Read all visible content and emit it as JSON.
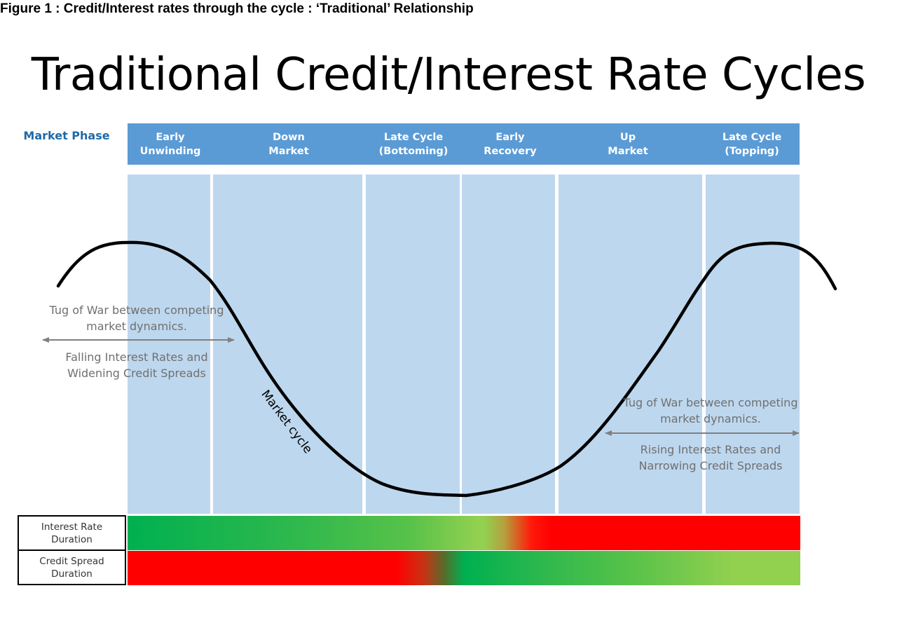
{
  "figure_caption": "Figure 1 : Credit/Interest rates through the cycle : ‘Traditional’ Relationship",
  "title": "Traditional Credit/Interest Rate Cycles",
  "market_phase_label": "Market Phase",
  "phases": [
    {
      "line1": "Early",
      "line2": "Unwinding"
    },
    {
      "line1": "Down",
      "line2": "Market"
    },
    {
      "line1": "Late Cycle",
      "line2": "(Bottoming)"
    },
    {
      "line1": "Early",
      "line2": "Recovery"
    },
    {
      "line1": "Up",
      "line2": "Market"
    },
    {
      "line1": "Late Cycle",
      "line2": "(Topping)"
    }
  ],
  "curve_label": "Market cycle",
  "left_annotation": {
    "line1": "Tug of War between competing",
    "line2": "market dynamics.",
    "line3": "Falling Interest Rates and",
    "line4": "Widening Credit Spreads"
  },
  "right_annotation": {
    "line1": "Tug of War between competing",
    "line2": "market dynamics.",
    "line3": "Rising Interest Rates and",
    "line4": "Narrowing Credit Spreads"
  },
  "duration_rows": [
    {
      "line1": "Interest Rate",
      "line2": "Duration"
    },
    {
      "line1": "Credit Spread",
      "line2": "Duration"
    }
  ],
  "colors": {
    "header_blue": "#5b9bd5",
    "column_blue": "#bdd7ee",
    "phase_label_blue": "#1f6aa8",
    "red": "#ff0000",
    "green": "#00b050",
    "light_green": "#92d050"
  }
}
